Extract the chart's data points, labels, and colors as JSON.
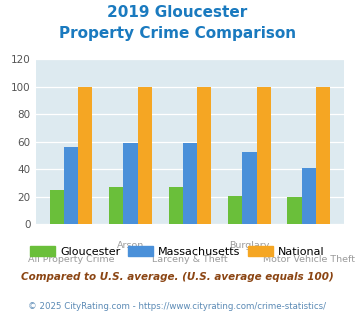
{
  "title_line1": "2019 Gloucester",
  "title_line2": "Property Crime Comparison",
  "categories": [
    "All Property Crime",
    "Arson",
    "Larceny & Theft",
    "Burglary",
    "Motor Vehicle Theft"
  ],
  "top_labels": {
    "1": "Arson",
    "3": "Burglary"
  },
  "bottom_labels": {
    "0": "All Property Crime",
    "2": "Larceny & Theft",
    "4": "Motor Vehicle Theft"
  },
  "gloucester": [
    25,
    27,
    27,
    21,
    20
  ],
  "massachusetts": [
    56,
    59,
    59,
    53,
    41
  ],
  "national": [
    100,
    100,
    100,
    100,
    100
  ],
  "gloucester_color": "#6abf3a",
  "massachusetts_color": "#4a90d9",
  "national_color": "#f5a623",
  "ylim": [
    0,
    120
  ],
  "yticks": [
    0,
    20,
    40,
    60,
    80,
    100,
    120
  ],
  "bg_color": "#ddeaf0",
  "legend_gloucester": "Gloucester",
  "legend_massachusetts": "Massachusetts",
  "legend_national": "National",
  "footnote1": "Compared to U.S. average. (U.S. average equals 100)",
  "footnote2": "© 2025 CityRating.com - https://www.cityrating.com/crime-statistics/",
  "title_color": "#1a7abf",
  "footnote1_color": "#8B4513",
  "footnote2_color": "#5b8ab5",
  "label_color": "#9b9b9b"
}
